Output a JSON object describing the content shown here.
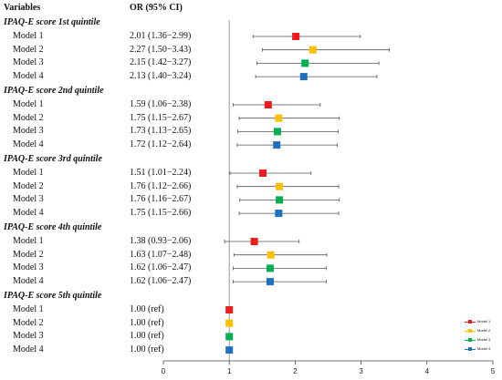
{
  "chart_data": {
    "type": "forest",
    "headers": {
      "variables": "Variables",
      "or": "OR  (95% CI)"
    },
    "xlim": [
      0,
      5
    ],
    "xticks": [
      "0",
      "1",
      "2",
      "3",
      "4",
      "5"
    ],
    "reference_line": 1,
    "colors": {
      "Model 1": "#ee1c1c",
      "Model 2": "#ffc000",
      "Model 3": "#00b050",
      "Model 4": "#1f6fc0"
    },
    "legend": [
      "Model 1",
      "Model 2",
      "Model 3",
      "Model 4"
    ],
    "groups": [
      {
        "title": "IPAQ-E score 1st quintile",
        "rows": [
          {
            "model": "Model 1",
            "or_text": "2.01 (1.36−2.99)",
            "or": 2.01,
            "lo": 1.36,
            "hi": 2.99
          },
          {
            "model": "Model 2",
            "or_text": "2.27 (1.50−3.43)",
            "or": 2.27,
            "lo": 1.5,
            "hi": 3.43
          },
          {
            "model": "Model 3",
            "or_text": "2.15 (1.42−3.27)",
            "or": 2.15,
            "lo": 1.42,
            "hi": 3.27
          },
          {
            "model": "Model 4",
            "or_text": "2.13 (1.40−3.24)",
            "or": 2.13,
            "lo": 1.4,
            "hi": 3.24
          }
        ]
      },
      {
        "title": "IPAQ-E score 2nd quintile",
        "rows": [
          {
            "model": "Model 1",
            "or_text": "1.59 (1.06−2.38)",
            "or": 1.59,
            "lo": 1.06,
            "hi": 2.38
          },
          {
            "model": "Model 2",
            "or_text": "1.75 (1.15−2.67)",
            "or": 1.75,
            "lo": 1.15,
            "hi": 2.67
          },
          {
            "model": "Model 3",
            "or_text": "1.73 (1.13−2.65)",
            "or": 1.73,
            "lo": 1.13,
            "hi": 2.65
          },
          {
            "model": "Model 4",
            "or_text": "1.72 (1.12−2.64)",
            "or": 1.72,
            "lo": 1.12,
            "hi": 2.64
          }
        ]
      },
      {
        "title": "IPAQ-E score 3rd quintile",
        "rows": [
          {
            "model": "Model 1",
            "or_text": "1.51 (1.01−2.24)",
            "or": 1.51,
            "lo": 1.01,
            "hi": 2.24
          },
          {
            "model": "Model 2",
            "or_text": "1.76 (1.12−2.66)",
            "or": 1.76,
            "lo": 1.12,
            "hi": 2.66
          },
          {
            "model": "Model 3",
            "or_text": "1.76 (1.16−2.67)",
            "or": 1.76,
            "lo": 1.16,
            "hi": 2.67
          },
          {
            "model": "Model 4",
            "or_text": "1.75 (1.15−2.66)",
            "or": 1.75,
            "lo": 1.15,
            "hi": 2.66
          }
        ]
      },
      {
        "title": "IPAQ-E score 4th quintile",
        "rows": [
          {
            "model": "Model 1",
            "or_text": "1.38 (0.93−2.06)",
            "or": 1.38,
            "lo": 0.93,
            "hi": 2.06
          },
          {
            "model": "Model 2",
            "or_text": "1.63 (1.07−2.48)",
            "or": 1.63,
            "lo": 1.07,
            "hi": 2.48
          },
          {
            "model": "Model 3",
            "or_text": "1.62 (1.06−2.47)",
            "or": 1.62,
            "lo": 1.06,
            "hi": 2.47
          },
          {
            "model": "Model 4",
            "or_text": "1.62 (1.06−2.47)",
            "or": 1.62,
            "lo": 1.06,
            "hi": 2.47
          }
        ]
      },
      {
        "title": "IPAQ-E score 5th quintile",
        "rows": [
          {
            "model": "Model 1",
            "or_text": "1.00 (ref)",
            "or": 1.0,
            "lo": 1.0,
            "hi": 1.0
          },
          {
            "model": "Model 2",
            "or_text": "1.00 (ref)",
            "or": 1.0,
            "lo": 1.0,
            "hi": 1.0
          },
          {
            "model": "Model 3",
            "or_text": "1.00 (ref)",
            "or": 1.0,
            "lo": 1.0,
            "hi": 1.0
          },
          {
            "model": "Model 4",
            "or_text": "1.00 (ref)",
            "or": 1.0,
            "lo": 1.0,
            "hi": 1.0
          }
        ]
      }
    ]
  }
}
